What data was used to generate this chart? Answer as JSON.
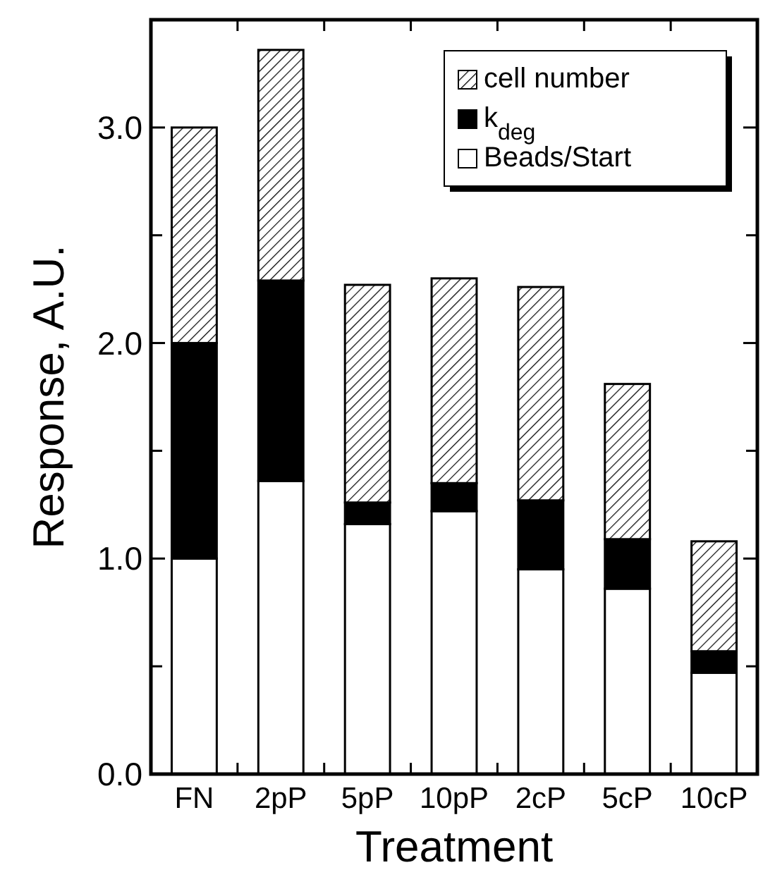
{
  "chart_data": {
    "type": "bar",
    "stacked": true,
    "xlabel": "Treatment",
    "ylabel": "Response, A.U.",
    "categories": [
      "FN",
      "2pP",
      "5pP",
      "10pP",
      "2cP",
      "5cP",
      "10cP"
    ],
    "series": [
      {
        "name": "Beads/Start",
        "color": "#ffffff",
        "values": [
          1.0,
          1.36,
          1.16,
          1.22,
          0.95,
          0.86,
          0.47
        ]
      },
      {
        "name": "k$_{deg}$",
        "color": "#000000",
        "values": [
          1.0,
          0.93,
          0.1,
          0.13,
          0.32,
          0.23,
          0.1
        ]
      },
      {
        "name": "cell number",
        "color": "#000000",
        "values": [
          1.0,
          1.07,
          1.01,
          0.95,
          0.99,
          0.72,
          0.51
        ]
      }
    ],
    "ylim": [
      0,
      3.5
    ],
    "yticks": [
      {
        "value": 0,
        "label": "0.0"
      },
      {
        "value": 0.5,
        "label": null
      },
      {
        "value": 1,
        "label": "1.0"
      },
      {
        "value": 1.5,
        "label": null
      },
      {
        "value": 2,
        "label": "2.0"
      },
      {
        "value": 2.5,
        "label": null
      },
      {
        "value": 3,
        "label": "3.0"
      }
    ],
    "legend": "top right",
    "grid": false
  }
}
